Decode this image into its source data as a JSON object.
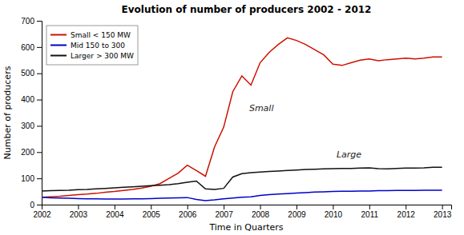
{
  "chart_data": {
    "type": "line",
    "title": "Evolution of number of producers 2002 - 2012",
    "xlabel": "Time in Quarters",
    "ylabel": "Number of producers",
    "xlim": [
      2002.0,
      2013.25
    ],
    "xticks": [
      2002,
      2003,
      2004,
      2005,
      2006,
      2007,
      2008,
      2009,
      2010,
      2011,
      2012,
      2013
    ],
    "ylim": [
      0,
      700
    ],
    "yticks": [
      0,
      100,
      200,
      300,
      400,
      500,
      600,
      700
    ],
    "legend": "upper left",
    "x": [
      2002.0,
      2002.25,
      2002.5,
      2002.75,
      2003.0,
      2003.25,
      2003.5,
      2003.75,
      2004.0,
      2004.25,
      2004.5,
      2004.75,
      2005.0,
      2005.25,
      2005.5,
      2005.75,
      2006.0,
      2006.25,
      2006.5,
      2006.75,
      2007.0,
      2007.25,
      2007.5,
      2007.75,
      2008.0,
      2008.25,
      2008.5,
      2008.75,
      2009.0,
      2009.25,
      2009.5,
      2009.75,
      2010.0,
      2010.25,
      2010.5,
      2010.75,
      2011.0,
      2011.25,
      2011.5,
      2011.75,
      2012.0,
      2012.25,
      2012.5,
      2012.75,
      2013.0
    ],
    "series": [
      {
        "name": "Small < 150 MW",
        "color": "#cc1100",
        "values": [
          28,
          30,
          32,
          35,
          38,
          40,
          43,
          47,
          50,
          54,
          58,
          63,
          70,
          80,
          100,
          120,
          150,
          130,
          108,
          220,
          295,
          430,
          490,
          455,
          540,
          580,
          610,
          635,
          625,
          610,
          590,
          570,
          535,
          530,
          540,
          550,
          555,
          548,
          552,
          555,
          558,
          555,
          558,
          562,
          562
        ]
      },
      {
        "name": "Mid 150 to 300",
        "color": "#0000cc",
        "values": [
          28,
          26,
          25,
          24,
          23,
          22,
          22,
          21,
          21,
          21,
          22,
          22,
          23,
          24,
          25,
          26,
          27,
          20,
          15,
          18,
          22,
          25,
          28,
          30,
          35,
          38,
          40,
          42,
          44,
          46,
          48,
          49,
          50,
          51,
          51,
          52,
          52,
          53,
          53,
          54,
          54,
          54,
          55,
          55,
          55
        ]
      },
      {
        "name": "Larger > 300 MW",
        "color": "#111111",
        "values": [
          52,
          53,
          54,
          55,
          57,
          58,
          60,
          62,
          64,
          66,
          68,
          70,
          72,
          74,
          76,
          80,
          85,
          90,
          60,
          58,
          62,
          105,
          118,
          122,
          124,
          126,
          128,
          130,
          132,
          134,
          135,
          136,
          137,
          138,
          138,
          139,
          140,
          137,
          136,
          138,
          139,
          139,
          140,
          142,
          142
        ]
      }
    ],
    "annotations": [
      {
        "text": "Small",
        "x": 2007.7,
        "y": 355
      },
      {
        "text": "Large",
        "x": 2010.1,
        "y": 180
      }
    ]
  }
}
